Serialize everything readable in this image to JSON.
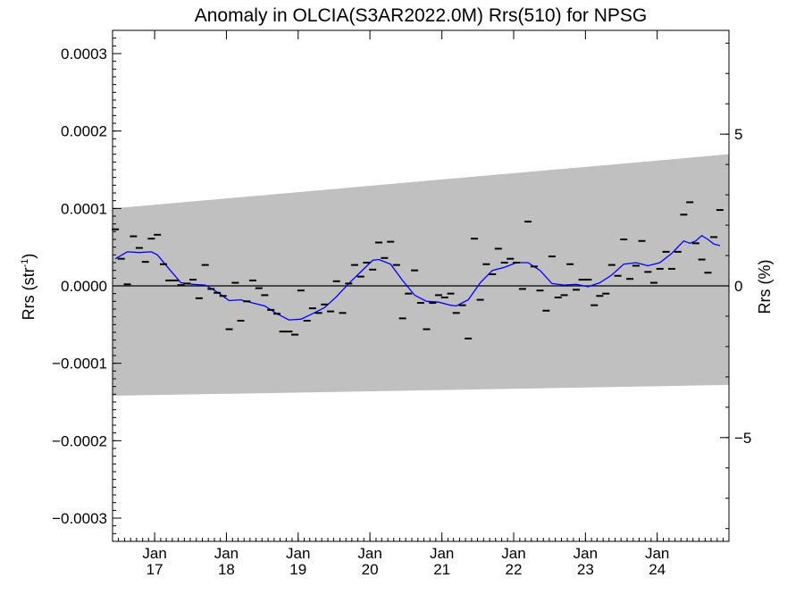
{
  "chart_data": {
    "type": "scatter",
    "title": "Anomaly in OLCIA(S3AR2022.0M) Rrs(510) for NPSG",
    "ylabel_left": "Rrs (str",
    "ylabel_left_sup": "-1",
    "ylabel_left_close": ")",
    "ylabel_right": "Rrs (%)",
    "x_range": [
      "2016-06-01",
      "2024-12-31"
    ],
    "ylim": [
      -0.00033,
      0.00033
    ],
    "ylim_percent": [
      -8.42,
      8.42
    ],
    "y_ticks": [
      -0.0003,
      -0.0002,
      -0.0001,
      0.0,
      0.0001,
      0.0002,
      0.0003
    ],
    "y_tick_labels": [
      "−0.0003",
      "−0.0002",
      "−0.0001",
      "0.0000",
      "0.0001",
      "0.0002",
      "0.0003"
    ],
    "y_right_ticks": [
      -5,
      0,
      5
    ],
    "y_right_tick_labels": [
      "−5",
      "0",
      "5"
    ],
    "x_ticks": [
      "2017-01-01",
      "2018-01-01",
      "2019-01-01",
      "2020-01-01",
      "2021-01-01",
      "2022-01-01",
      "2023-01-01",
      "2024-01-01"
    ],
    "x_tick_labels_month": [
      "Jan",
      "Jan",
      "Jan",
      "Jan",
      "Jan",
      "Jan",
      "Jan",
      "Jan"
    ],
    "x_tick_labels_year": [
      "17",
      "18",
      "19",
      "20",
      "21",
      "22",
      "23",
      "24"
    ],
    "band": {
      "start_upper": 0.0001,
      "end_upper": 0.00017,
      "start_lower": -0.000142,
      "end_lower": -0.000128,
      "color": "#c0c0c0"
    },
    "zero_line": 0.0,
    "series": [
      {
        "kind": "monthly-anomaly",
        "marker": "dash",
        "color": "#000000",
        "points": [
          [
            "2016-06-15",
            7.3e-05
          ],
          [
            "2016-07-15",
            3.5e-05
          ],
          [
            "2016-08-15",
            2e-06
          ],
          [
            "2016-09-15",
            6.4e-05
          ],
          [
            "2016-10-15",
            4.9e-05
          ],
          [
            "2016-11-15",
            3.1e-05
          ],
          [
            "2016-12-15",
            6.1e-05
          ],
          [
            "2017-01-15",
            6.6e-05
          ],
          [
            "2017-02-15",
            2.8e-05
          ],
          [
            "2017-03-15",
            7e-06
          ],
          [
            "2017-04-15",
            7e-06
          ],
          [
            "2017-05-15",
            1e-06
          ],
          [
            "2017-06-15",
            3e-06
          ],
          [
            "2017-07-15",
            8e-06
          ],
          [
            "2017-08-15",
            -1.6e-05
          ],
          [
            "2017-09-15",
            2.7e-05
          ],
          [
            "2017-10-15",
            -4e-06
          ],
          [
            "2017-11-15",
            -9e-06
          ],
          [
            "2017-12-15",
            -1.3e-05
          ],
          [
            "2018-01-15",
            -5.6e-05
          ],
          [
            "2018-02-15",
            4e-06
          ],
          [
            "2018-03-15",
            -4.5e-05
          ],
          [
            "2018-04-15",
            -2e-05
          ],
          [
            "2018-05-15",
            7e-06
          ],
          [
            "2018-06-15",
            -3e-06
          ],
          [
            "2018-07-15",
            -1.2e-05
          ],
          [
            "2018-08-15",
            -3.1e-05
          ],
          [
            "2018-09-15",
            -3.6e-05
          ],
          [
            "2018-10-15",
            -5.9e-05
          ],
          [
            "2018-11-15",
            -5.9e-05
          ],
          [
            "2018-12-15",
            -6.3e-05
          ],
          [
            "2019-01-15",
            -6e-06
          ],
          [
            "2019-02-15",
            -4.5e-05
          ],
          [
            "2019-03-15",
            -2.9e-05
          ],
          [
            "2019-04-15",
            -3.5e-05
          ],
          [
            "2019-05-15",
            -2.4e-05
          ],
          [
            "2019-06-15",
            -3.3e-05
          ],
          [
            "2019-07-15",
            6e-06
          ],
          [
            "2019-08-15",
            -3.5e-05
          ],
          [
            "2019-09-15",
            3e-06
          ],
          [
            "2019-10-15",
            2.7e-05
          ],
          [
            "2019-11-15",
            1.2e-05
          ],
          [
            "2019-12-15",
            3e-05
          ],
          [
            "2020-01-15",
            2.1e-05
          ],
          [
            "2020-02-15",
            5.6e-05
          ],
          [
            "2020-03-15",
            3.6e-05
          ],
          [
            "2020-04-15",
            5.7e-05
          ],
          [
            "2020-05-15",
            2.7e-05
          ],
          [
            "2020-06-15",
            -4.2e-05
          ],
          [
            "2020-07-15",
            -1e-05
          ],
          [
            "2020-08-15",
            2e-05
          ],
          [
            "2020-09-15",
            -2.2e-05
          ],
          [
            "2020-10-15",
            -5.6e-05
          ],
          [
            "2020-11-15",
            -2.2e-05
          ],
          [
            "2020-12-15",
            -1.2e-05
          ],
          [
            "2021-01-15",
            -1.5e-05
          ],
          [
            "2021-02-15",
            -1e-05
          ],
          [
            "2021-03-15",
            -3.5e-05
          ],
          [
            "2021-04-15",
            -2.5e-05
          ],
          [
            "2021-05-15",
            -6.8e-05
          ],
          [
            "2021-06-15",
            6.1e-05
          ],
          [
            "2021-07-15",
            -1.8e-05
          ],
          [
            "2021-08-15",
            2.8e-05
          ],
          [
            "2021-09-15",
            1.5e-05
          ],
          [
            "2021-10-15",
            4.8e-05
          ],
          [
            "2021-11-15",
            3e-05
          ],
          [
            "2021-12-15",
            3.5e-05
          ],
          [
            "2022-01-15",
            3e-05
          ],
          [
            "2022-02-15",
            -4e-06
          ],
          [
            "2022-03-15",
            8.3e-05
          ],
          [
            "2022-04-15",
            2.5e-05
          ],
          [
            "2022-05-15",
            -6e-06
          ],
          [
            "2022-06-15",
            -3.2e-05
          ],
          [
            "2022-07-15",
            3.8e-05
          ],
          [
            "2022-08-15",
            -1.5e-05
          ],
          [
            "2022-09-15",
            -1.2e-05
          ],
          [
            "2022-10-15",
            2.8e-05
          ],
          [
            "2022-11-15",
            -5e-06
          ],
          [
            "2022-12-15",
            8e-06
          ],
          [
            "2023-01-15",
            8e-06
          ],
          [
            "2023-02-15",
            -2.5e-05
          ],
          [
            "2023-03-15",
            -1.3e-05
          ],
          [
            "2023-04-15",
            -1e-05
          ],
          [
            "2023-05-15",
            2.7e-05
          ],
          [
            "2023-06-15",
            1.3e-05
          ],
          [
            "2023-07-15",
            6e-05
          ],
          [
            "2023-08-15",
            9e-06
          ],
          [
            "2023-09-15",
            2.6e-05
          ],
          [
            "2023-10-15",
            5.8e-05
          ],
          [
            "2023-11-15",
            1.8e-05
          ],
          [
            "2023-12-15",
            4e-06
          ],
          [
            "2024-01-15",
            2.2e-05
          ],
          [
            "2024-02-15",
            4.4e-05
          ],
          [
            "2024-03-15",
            2.2e-05
          ],
          [
            "2024-04-15",
            4.4e-05
          ],
          [
            "2024-05-15",
            9.2e-05
          ],
          [
            "2024-06-15",
            0.000108
          ],
          [
            "2024-07-15",
            5.5e-05
          ],
          [
            "2024-08-15",
            3.4e-05
          ],
          [
            "2024-09-15",
            1.7e-05
          ],
          [
            "2024-10-15",
            6.3e-05
          ],
          [
            "2024-11-15",
            9.8e-05
          ]
        ]
      },
      {
        "kind": "running-mean",
        "marker": "line",
        "color": "#0000ff",
        "points": [
          [
            "2016-06-15",
            3.5e-05
          ],
          [
            "2016-08-15",
            4.4e-05
          ],
          [
            "2016-10-15",
            4.3e-05
          ],
          [
            "2016-12-15",
            4.4e-05
          ],
          [
            "2017-01-15",
            4e-05
          ],
          [
            "2017-03-15",
            2.2e-05
          ],
          [
            "2017-05-15",
            4e-06
          ],
          [
            "2017-07-15",
            2e-06
          ],
          [
            "2017-09-15",
            1e-06
          ],
          [
            "2017-11-15",
            -8e-06
          ],
          [
            "2018-01-15",
            -1.9e-05
          ],
          [
            "2018-03-15",
            -1.8e-05
          ],
          [
            "2018-05-15",
            -2.2e-05
          ],
          [
            "2018-07-15",
            -2.6e-05
          ],
          [
            "2018-09-15",
            -3.6e-05
          ],
          [
            "2018-11-15",
            -4.4e-05
          ],
          [
            "2019-01-15",
            -4.3e-05
          ],
          [
            "2019-03-15",
            -3.6e-05
          ],
          [
            "2019-05-15",
            -2.8e-05
          ],
          [
            "2019-07-15",
            -1.4e-05
          ],
          [
            "2019-09-15",
            3e-06
          ],
          [
            "2019-11-15",
            1.8e-05
          ],
          [
            "2020-01-15",
            3.3e-05
          ],
          [
            "2020-02-15",
            3.4e-05
          ],
          [
            "2020-04-15",
            2.8e-05
          ],
          [
            "2020-06-15",
            7e-06
          ],
          [
            "2020-08-15",
            -1.2e-05
          ],
          [
            "2020-10-15",
            -2e-05
          ],
          [
            "2020-12-15",
            -2.1e-05
          ],
          [
            "2021-02-15",
            -2.5e-05
          ],
          [
            "2021-03-15",
            -2.6e-05
          ],
          [
            "2021-05-15",
            -1.8e-05
          ],
          [
            "2021-07-15",
            4e-06
          ],
          [
            "2021-09-15",
            2e-05
          ],
          [
            "2021-11-15",
            2.4e-05
          ],
          [
            "2022-01-15",
            3e-05
          ],
          [
            "2022-03-15",
            3e-05
          ],
          [
            "2022-05-15",
            2e-05
          ],
          [
            "2022-07-15",
            3e-06
          ],
          [
            "2022-09-15",
            1e-06
          ],
          [
            "2022-11-15",
            2e-06
          ],
          [
            "2023-01-15",
            -1e-06
          ],
          [
            "2023-03-15",
            4e-06
          ],
          [
            "2023-05-15",
            1.4e-05
          ],
          [
            "2023-07-15",
            2.8e-05
          ],
          [
            "2023-09-15",
            3e-05
          ],
          [
            "2023-11-15",
            2.6e-05
          ],
          [
            "2024-01-15",
            3e-05
          ],
          [
            "2024-03-15",
            4.2e-05
          ],
          [
            "2024-05-15",
            5.8e-05
          ],
          [
            "2024-06-15",
            5.5e-05
          ],
          [
            "2024-07-15",
            5.8e-05
          ],
          [
            "2024-08-15",
            6.5e-05
          ],
          [
            "2024-09-15",
            6e-05
          ],
          [
            "2024-10-15",
            5.4e-05
          ],
          [
            "2024-11-15",
            5.2e-05
          ]
        ]
      }
    ]
  }
}
